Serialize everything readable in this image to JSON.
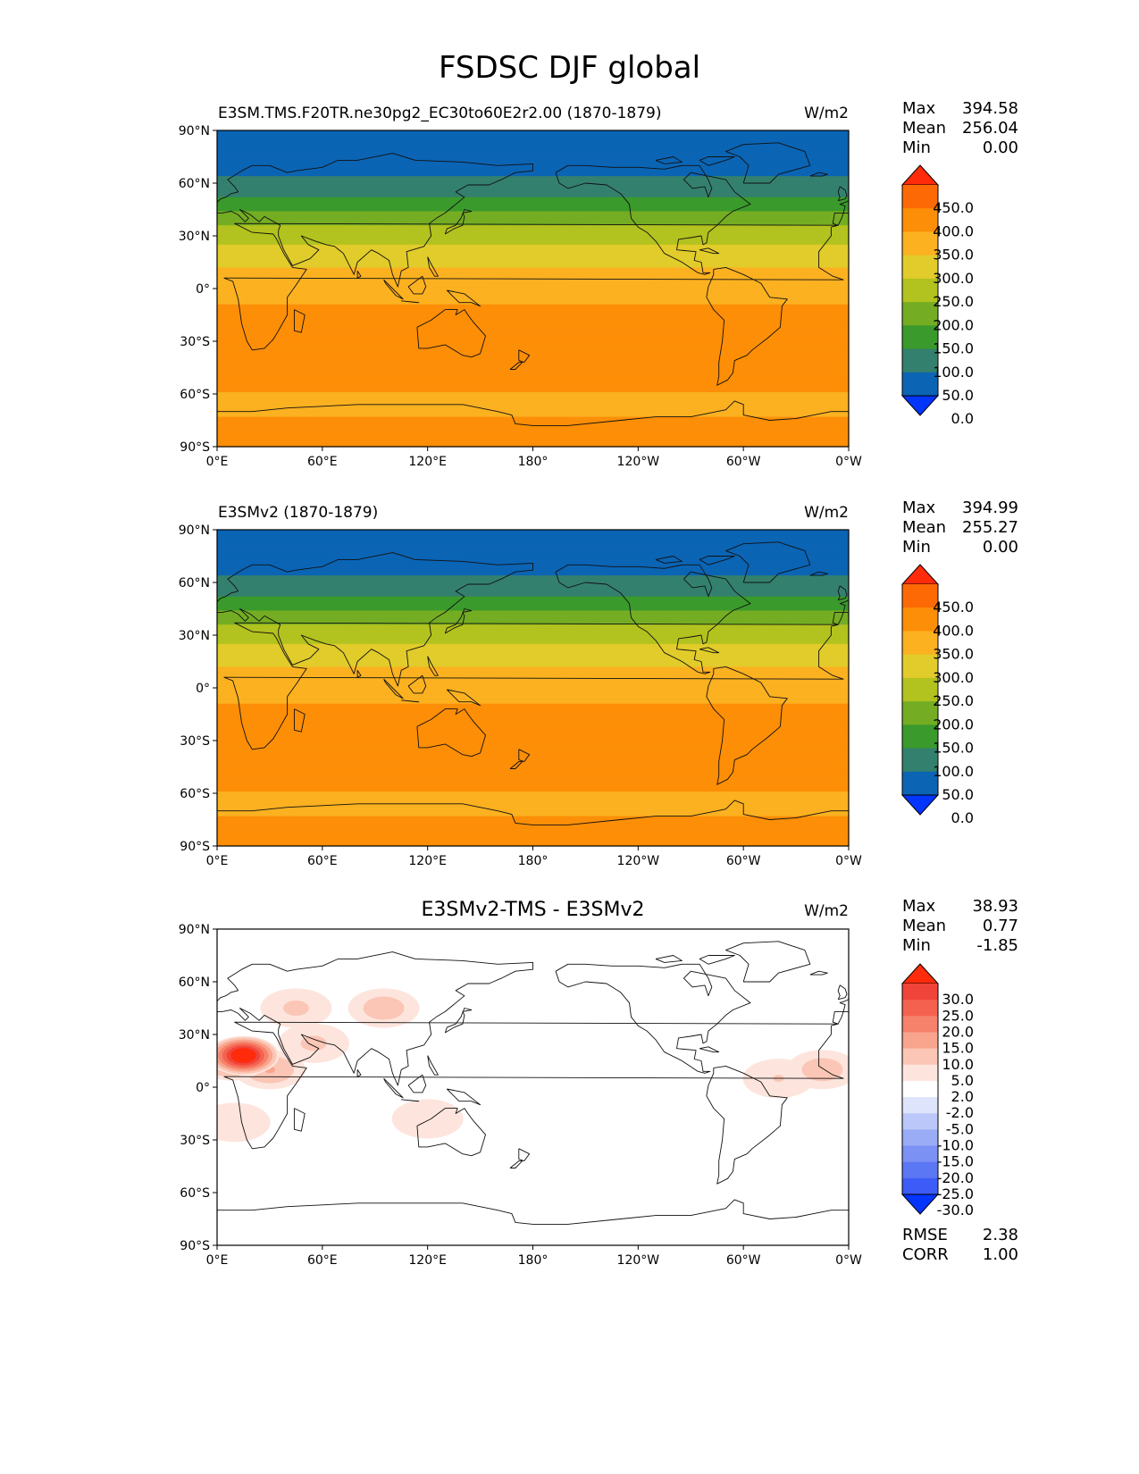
{
  "figure_title": "FSDSC DJF global",
  "chart_data": [
    {
      "type": "heatmap",
      "panel": "test",
      "title": "E3SM.TMS.F20TR.ne30pg2_EC30to60E2r2.00 (1870-1879)",
      "units": "W/m2",
      "x_ticks": [
        "0°E",
        "60°E",
        "120°E",
        "180°",
        "120°W",
        "60°W",
        "0°W"
      ],
      "y_ticks": [
        "90°N",
        "60°N",
        "30°N",
        "0°",
        "30°S",
        "60°S",
        "90°S"
      ],
      "xlim": [
        0,
        360
      ],
      "ylim": [
        -90,
        90
      ],
      "stats": [
        {
          "label": "Max",
          "value": "394.58"
        },
        {
          "label": "Mean",
          "value": "256.04"
        },
        {
          "label": "Min",
          "value": "0.00"
        }
      ],
      "colorbar_levels": [
        "450.0",
        "400.0",
        "350.0",
        "300.0",
        "250.0",
        "200.0",
        "150.0",
        "100.0",
        "50.0",
        "0.0"
      ],
      "colorbar_colors": [
        "#ff2b0a",
        "#fd6a05",
        "#fd8e07",
        "#fbb120",
        "#e1cc2b",
        "#b2c21e",
        "#74ad23",
        "#3a9a2c",
        "#34806e",
        "#0b64b4",
        "#0335fd"
      ],
      "zonal_profile": [
        {
          "lat": 90,
          "value": 0
        },
        {
          "lat": 86,
          "value": 30
        },
        {
          "lat": 75,
          "value": 25
        },
        {
          "lat": 60,
          "value": 60
        },
        {
          "lat": 50,
          "value": 110
        },
        {
          "lat": 42,
          "value": 160
        },
        {
          "lat": 35,
          "value": 205
        },
        {
          "lat": 25,
          "value": 250
        },
        {
          "lat": 12,
          "value": 300
        },
        {
          "lat": 0,
          "value": 335
        },
        {
          "lat": -15,
          "value": 360
        },
        {
          "lat": -30,
          "value": 380
        },
        {
          "lat": -45,
          "value": 385
        },
        {
          "lat": -55,
          "value": 365
        },
        {
          "lat": -65,
          "value": 330
        },
        {
          "lat": -75,
          "value": 355
        },
        {
          "lat": -90,
          "value": 370
        }
      ]
    },
    {
      "type": "heatmap",
      "panel": "reference",
      "title": "E3SMv2 (1870-1879)",
      "units": "W/m2",
      "x_ticks": [
        "0°E",
        "60°E",
        "120°E",
        "180°",
        "120°W",
        "60°W",
        "0°W"
      ],
      "y_ticks": [
        "90°N",
        "60°N",
        "30°N",
        "0°",
        "30°S",
        "60°S",
        "90°S"
      ],
      "xlim": [
        0,
        360
      ],
      "ylim": [
        -90,
        90
      ],
      "stats": [
        {
          "label": "Max",
          "value": "394.99"
        },
        {
          "label": "Mean",
          "value": "255.27"
        },
        {
          "label": "Min",
          "value": "0.00"
        }
      ],
      "colorbar_levels": [
        "450.0",
        "400.0",
        "350.0",
        "300.0",
        "250.0",
        "200.0",
        "150.0",
        "100.0",
        "50.0",
        "0.0"
      ],
      "colorbar_colors": [
        "#ff2b0a",
        "#fd6a05",
        "#fd8e07",
        "#fbb120",
        "#e1cc2b",
        "#b2c21e",
        "#74ad23",
        "#3a9a2c",
        "#34806e",
        "#0b64b4",
        "#0335fd"
      ],
      "zonal_profile": [
        {
          "lat": 90,
          "value": 0
        },
        {
          "lat": 86,
          "value": 30
        },
        {
          "lat": 75,
          "value": 25
        },
        {
          "lat": 60,
          "value": 60
        },
        {
          "lat": 50,
          "value": 110
        },
        {
          "lat": 42,
          "value": 160
        },
        {
          "lat": 35,
          "value": 205
        },
        {
          "lat": 25,
          "value": 250
        },
        {
          "lat": 12,
          "value": 300
        },
        {
          "lat": 0,
          "value": 335
        },
        {
          "lat": -15,
          "value": 360
        },
        {
          "lat": -30,
          "value": 380
        },
        {
          "lat": -45,
          "value": 385
        },
        {
          "lat": -55,
          "value": 365
        },
        {
          "lat": -65,
          "value": 330
        },
        {
          "lat": -75,
          "value": 355
        },
        {
          "lat": -90,
          "value": 370
        }
      ]
    },
    {
      "type": "heatmap",
      "panel": "difference",
      "title": "E3SMv2-TMS - E3SMv2",
      "units": "W/m2",
      "x_ticks": [
        "0°E",
        "60°E",
        "120°E",
        "180°",
        "120°W",
        "60°W",
        "0°W"
      ],
      "y_ticks": [
        "90°N",
        "60°N",
        "30°N",
        "0°",
        "30°S",
        "60°S",
        "90°S"
      ],
      "xlim": [
        0,
        360
      ],
      "ylim": [
        -90,
        90
      ],
      "stats": [
        {
          "label": "Max",
          "value": "38.93"
        },
        {
          "label": "Mean",
          "value": "0.77"
        },
        {
          "label": "Min",
          "value": "-1.85"
        }
      ],
      "colorbar_levels": [
        "30.0",
        "25.0",
        "20.0",
        "15.0",
        "10.0",
        "5.0",
        "2.0",
        "-2.0",
        "-5.0",
        "-10.0",
        "-15.0",
        "-20.0",
        "-25.0",
        "-30.0"
      ],
      "colorbar_colors": [
        "#ff2b0a",
        "#f0443a",
        "#f4624f",
        "#f6826c",
        "#f9a58d",
        "#fbc6b5",
        "#fde5dd",
        "#ffffff",
        "#dde4fb",
        "#bac7f8",
        "#9aacf6",
        "#7b91f4",
        "#5c77f4",
        "#3d5bf6",
        "#0335fd"
      ],
      "extra_stats": [
        {
          "label": "RMSE",
          "value": "2.38"
        },
        {
          "label": "CORR",
          "value": "1.00"
        }
      ],
      "anomalies": [
        {
          "lon": 15,
          "lat": 18,
          "value": 38.9
        },
        {
          "lon": 8,
          "lat": 15,
          "value": 15
        },
        {
          "lon": 30,
          "lat": 10,
          "value": 10
        },
        {
          "lon": 55,
          "lat": 25,
          "value": 6
        },
        {
          "lon": 95,
          "lat": 45,
          "value": 8
        },
        {
          "lon": 45,
          "lat": 45,
          "value": 6
        },
        {
          "lon": 345,
          "lat": 10,
          "value": 8
        },
        {
          "lon": 320,
          "lat": 5,
          "value": 5
        },
        {
          "lon": 10,
          "lat": -20,
          "value": 4
        },
        {
          "lon": 120,
          "lat": -18,
          "value": 3
        }
      ]
    }
  ]
}
